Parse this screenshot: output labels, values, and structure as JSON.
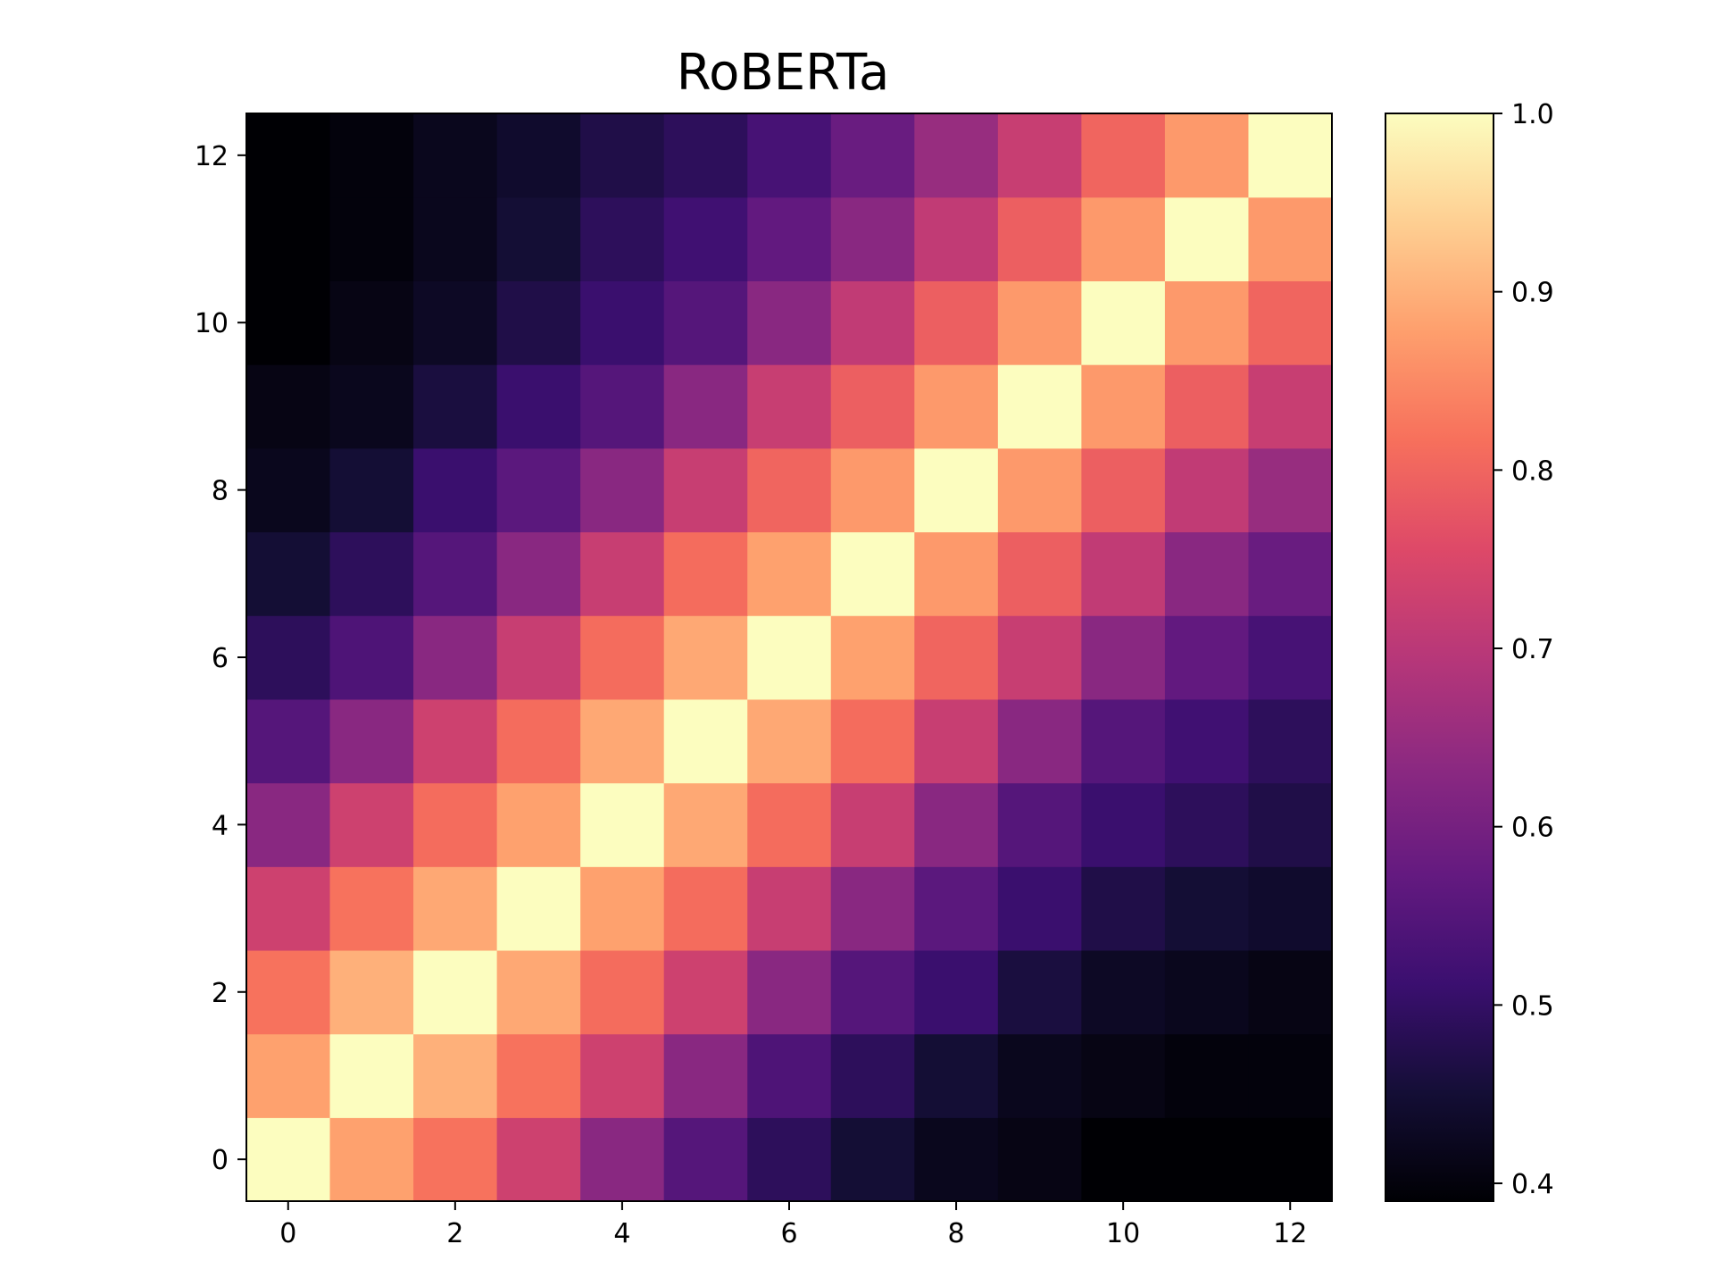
{
  "chart_data": {
    "type": "heatmap",
    "title": "RoBERTa",
    "xlabel": "",
    "ylabel": "",
    "x_ticks": [
      "0",
      "2",
      "4",
      "6",
      "8",
      "10",
      "12"
    ],
    "y_ticks": [
      "0",
      "2",
      "4",
      "6",
      "8",
      "10",
      "12"
    ],
    "xlim": [
      -0.5,
      12.5
    ],
    "ylim": [
      -0.5,
      12.5
    ],
    "colormap": "magma",
    "colorbar": {
      "range": [
        0.39,
        1.0
      ],
      "ticks": [
        "0.4",
        "0.5",
        "0.6",
        "0.7",
        "0.8",
        "0.9",
        "1.0"
      ],
      "tick_values": [
        0.4,
        0.5,
        0.6,
        0.7,
        0.8,
        0.9,
        1.0
      ]
    },
    "grid": false,
    "origin": "lower",
    "values": [
      [
        1.0,
        0.88,
        0.82,
        0.73,
        0.63,
        0.55,
        0.49,
        0.45,
        0.42,
        0.41,
        0.39,
        0.39,
        0.39
      ],
      [
        0.88,
        1.0,
        0.9,
        0.82,
        0.73,
        0.63,
        0.54,
        0.49,
        0.45,
        0.42,
        0.41,
        0.4,
        0.4
      ],
      [
        0.82,
        0.9,
        1.0,
        0.89,
        0.81,
        0.73,
        0.63,
        0.55,
        0.51,
        0.46,
        0.43,
        0.42,
        0.41
      ],
      [
        0.73,
        0.82,
        0.89,
        1.0,
        0.88,
        0.81,
        0.72,
        0.63,
        0.56,
        0.51,
        0.47,
        0.45,
        0.44
      ],
      [
        0.63,
        0.73,
        0.81,
        0.88,
        1.0,
        0.89,
        0.81,
        0.72,
        0.63,
        0.55,
        0.51,
        0.49,
        0.47
      ],
      [
        0.55,
        0.63,
        0.73,
        0.81,
        0.89,
        1.0,
        0.89,
        0.81,
        0.72,
        0.63,
        0.55,
        0.52,
        0.49
      ],
      [
        0.49,
        0.54,
        0.63,
        0.72,
        0.81,
        0.89,
        1.0,
        0.88,
        0.8,
        0.72,
        0.63,
        0.57,
        0.53
      ],
      [
        0.45,
        0.49,
        0.55,
        0.63,
        0.72,
        0.81,
        0.88,
        1.0,
        0.87,
        0.79,
        0.71,
        0.63,
        0.58
      ],
      [
        0.42,
        0.45,
        0.51,
        0.56,
        0.63,
        0.72,
        0.8,
        0.87,
        1.0,
        0.87,
        0.79,
        0.71,
        0.65
      ],
      [
        0.41,
        0.42,
        0.46,
        0.51,
        0.55,
        0.63,
        0.72,
        0.79,
        0.87,
        1.0,
        0.87,
        0.79,
        0.72
      ],
      [
        0.39,
        0.41,
        0.43,
        0.47,
        0.51,
        0.55,
        0.63,
        0.71,
        0.79,
        0.87,
        1.0,
        0.87,
        0.8
      ],
      [
        0.39,
        0.4,
        0.42,
        0.45,
        0.49,
        0.52,
        0.57,
        0.63,
        0.71,
        0.79,
        0.87,
        1.0,
        0.87
      ],
      [
        0.39,
        0.4,
        0.42,
        0.44,
        0.47,
        0.49,
        0.53,
        0.58,
        0.65,
        0.72,
        0.8,
        0.87,
        1.0
      ]
    ]
  }
}
